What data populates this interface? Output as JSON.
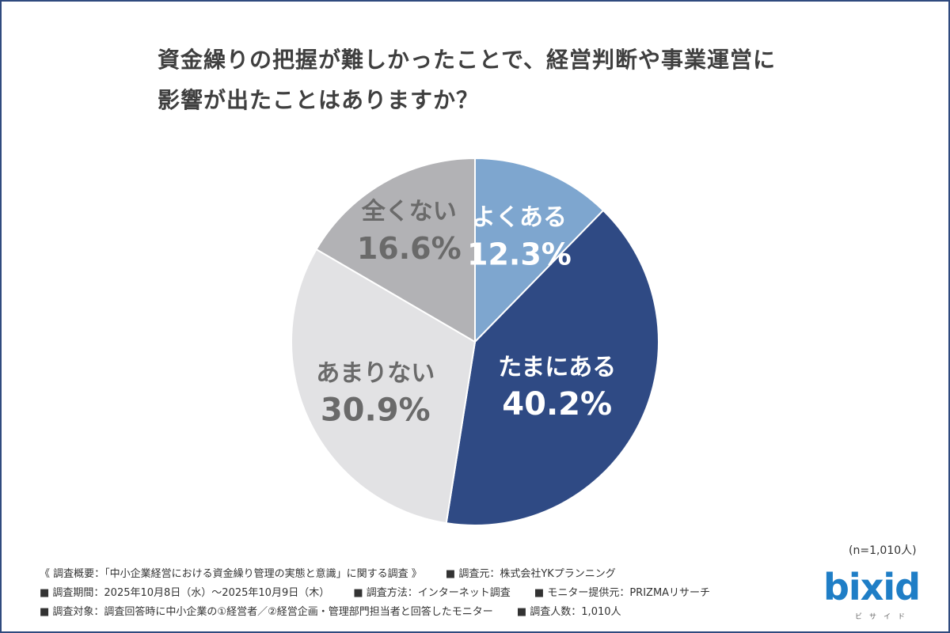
{
  "title": {
    "line1": "資金繰りの把握が難しかったことで、経営判断や事業運営に",
    "line2": "影響が出たことはありますか？"
  },
  "chart_data": {
    "type": "pie",
    "slices": [
      {
        "label": "よくある",
        "value": 12.3,
        "value_text": "12.3%",
        "color": "#7ea6cf",
        "text_color": "#ffffff"
      },
      {
        "label": "たまにある",
        "value": 40.2,
        "value_text": "40.2%",
        "color": "#2f4a84",
        "text_color": "#ffffff"
      },
      {
        "label": "あまりない",
        "value": 30.9,
        "value_text": "30.9%",
        "color": "#e2e2e4",
        "text_color": "#6a6a6a"
      },
      {
        "label": "全くない",
        "value": 16.6,
        "value_text": "16.6%",
        "color": "#b2b2b5",
        "text_color": "#6a6a6a"
      }
    ],
    "sample_note": "(n=1,010人)"
  },
  "footer": {
    "overview": "《 調査概要：「中小企業経営における資金繰り管理の実態と意識」に関する調査 》",
    "source": "■ 調査元：株式会社YKプランニング",
    "period": "■ 調査期間：2025年10月8日（水）～2025年10月9日（木）",
    "method": "■ 調査方法：インターネット調査",
    "provider": "■ モニター提供元：PRIZMAリサーチ",
    "target": "■ 調査対象：調査回答時に中小企業の①経営者／②経営企画・管理部門担当者と回答したモニター",
    "count": "■ 調査人数：1,010人"
  },
  "logo": {
    "text": "bixid",
    "sub": "ビサイド"
  }
}
